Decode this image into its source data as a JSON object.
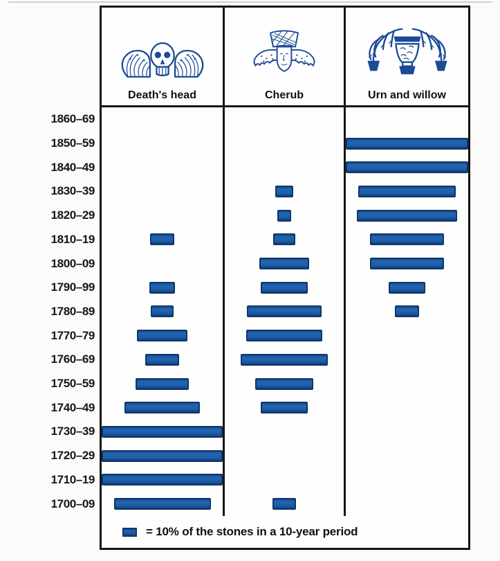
{
  "figure": {
    "description_note": "",
    "frame_color": "#141414",
    "background": "#fbfbf9"
  },
  "header": {
    "icons": [
      "winged-skull-icon",
      "cherub-icon",
      "urn-and-willow-icon"
    ]
  },
  "legend": {
    "swatch_color": "#1d5aa3",
    "swatch_border": "#0d3668",
    "text": "= 10% of the stones in a 10-year period"
  },
  "colors": {
    "bar_fill": "#1e5ca6",
    "bar_border": "#0d3668",
    "icon_blue": "#1d4a96",
    "label_text": "#161616"
  },
  "chart_data": {
    "type": "bar",
    "orientation": "horizontal-centered-seriation",
    "unit": "percent of the stones in a 10-year period",
    "legend_note": "= 10% of the stones in a 10-year period",
    "grid": false,
    "categories": [
      "1860–69",
      "1850–59",
      "1840–49",
      "1830–39",
      "1820–29",
      "1810–19",
      "1800–09",
      "1790–99",
      "1780–89",
      "1770–79",
      "1760–69",
      "1750–59",
      "1740–49",
      "1730–39",
      "1720–29",
      "1710–19",
      "1700–09"
    ],
    "series": [
      {
        "name": "Death's head",
        "values": [
          0,
          0,
          0,
          0,
          0,
          20,
          0,
          21,
          19,
          42,
          28,
          44,
          62,
          100,
          100,
          100,
          80
        ]
      },
      {
        "name": "Cherub",
        "values": [
          0,
          0,
          0,
          15,
          12,
          19,
          42,
          40,
          63,
          64,
          73,
          49,
          39,
          0,
          0,
          0,
          20
        ]
      },
      {
        "name": "Urn and willow",
        "values": [
          0,
          100,
          100,
          80,
          82,
          61,
          61,
          30,
          20,
          0,
          0,
          0,
          0,
          0,
          0,
          0,
          0
        ]
      }
    ]
  }
}
